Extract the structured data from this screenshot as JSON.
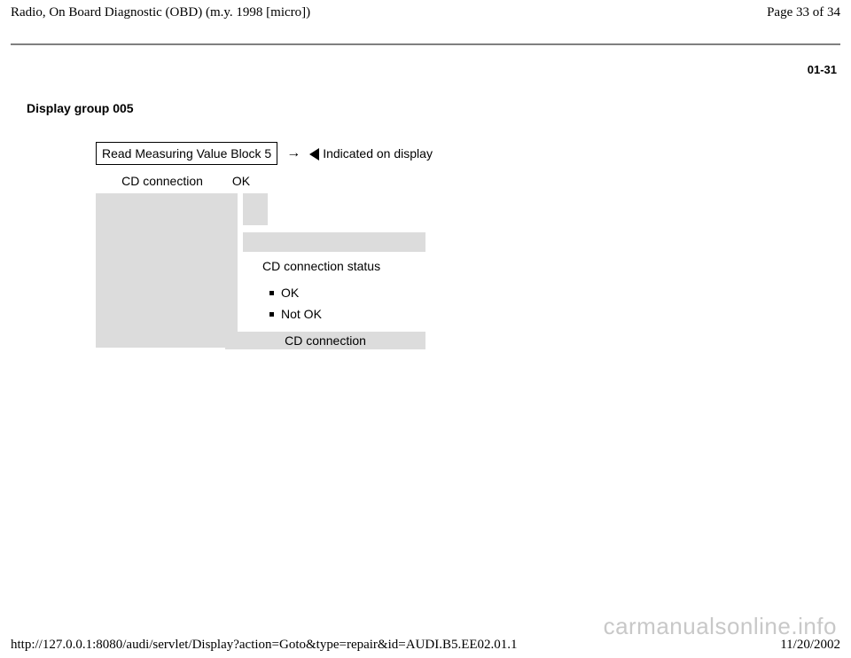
{
  "header": {
    "title": "Radio, On Board Diagnostic (OBD) (m.y. 1998 [micro])",
    "page_of": "Page 33 of 34"
  },
  "page_code": "01-31",
  "section_title": "Display group 005",
  "display": {
    "head": "Read Measuring Value Block 5",
    "indicated": "Indicated on display",
    "row_label": "CD connection",
    "row_value": "OK",
    "status_label": "CD connection status",
    "bullets": [
      "OK",
      "Not OK"
    ],
    "bottom_label": "CD connection"
  },
  "footer": {
    "url": "http://127.0.0.1:8080/audi/servlet/Display?action=Goto&type=repair&id=AUDI.B5.EE02.01.1",
    "date": "11/20/2002"
  },
  "watermark": "carmanualsonline.info",
  "colors": {
    "gray_fill": "#dcdcdc",
    "hr": "#808080",
    "watermark": "#c8c8c8"
  }
}
